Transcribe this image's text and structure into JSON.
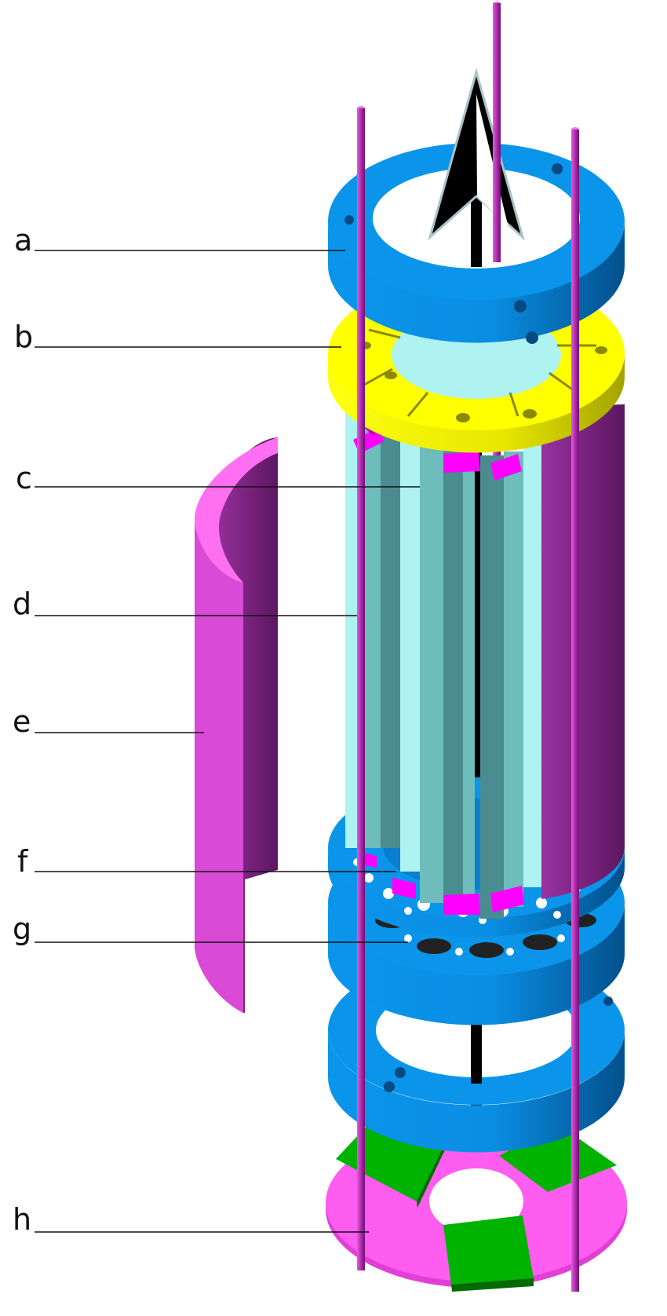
{
  "labels": {
    "a": "a",
    "b": "b",
    "c": "c",
    "d": "d",
    "e": "e",
    "f": "f",
    "g": "g",
    "h": "h"
  },
  "colors": {
    "blue": "#0a8fe6",
    "blue_dark": "#0666b0",
    "yellow": "#ffff00",
    "yellow_dark": "#b8b800",
    "magenta": "#ff2df0",
    "purple": "#8a2a90",
    "purple_light": "#d94ad6",
    "teal": "#6fbcbc",
    "teal_dark": "#4a8c90",
    "teal_light": "#aef2f2",
    "green": "#00b300",
    "pink": "#ff5cf0",
    "rod": "#c23ac0",
    "black": "#000000"
  }
}
